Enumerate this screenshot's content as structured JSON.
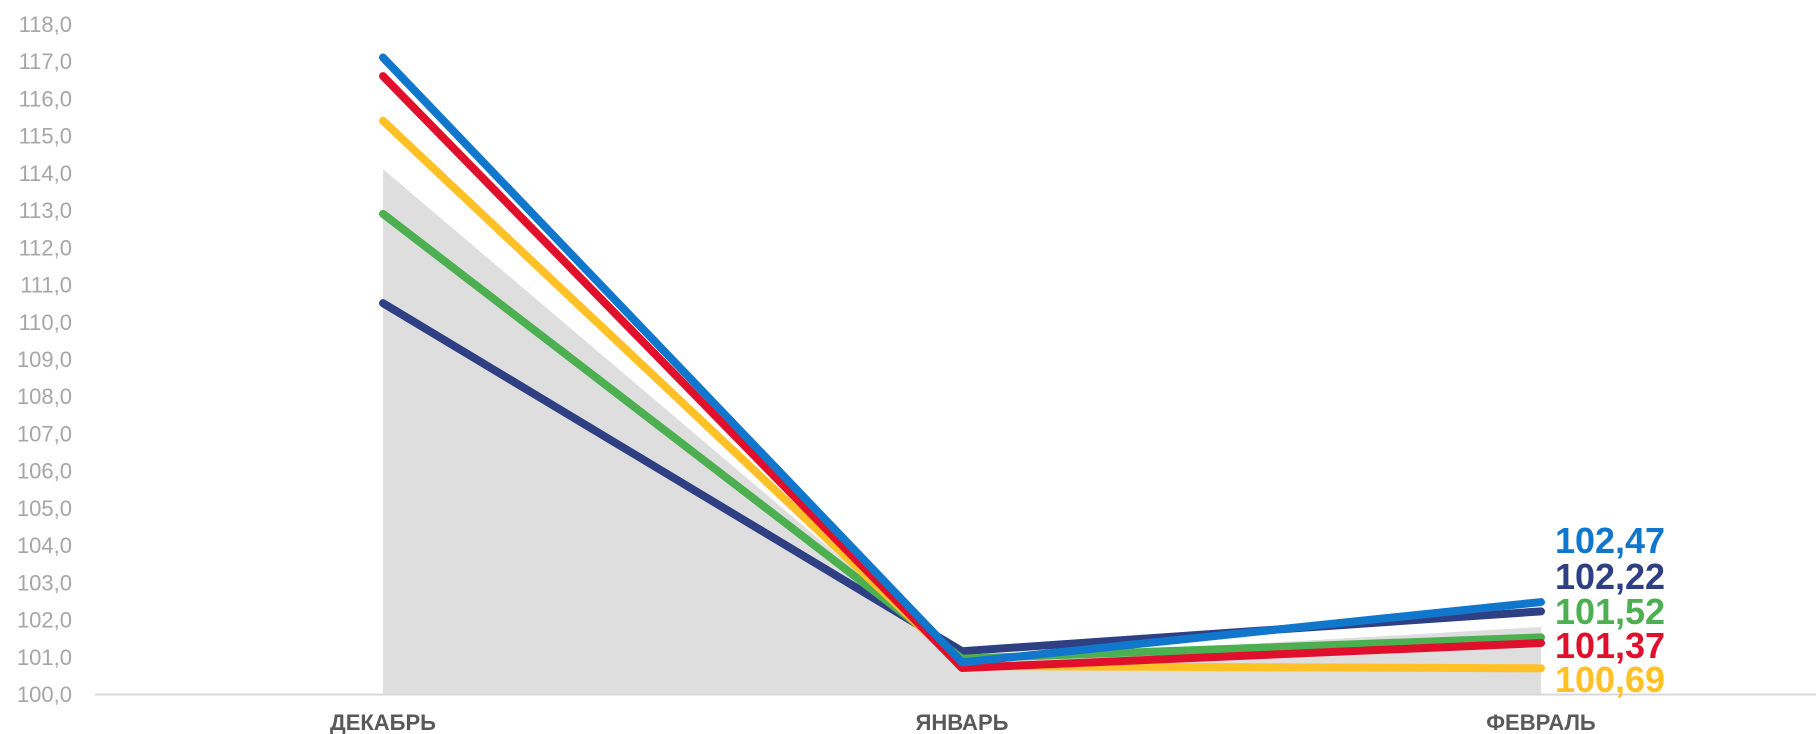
{
  "chart_data": {
    "type": "line",
    "categories": [
      "ДЕКАБРЬ",
      "ЯНВАРЬ",
      "ФЕВРАЛЬ"
    ],
    "ylim": [
      100.0,
      118.0
    ],
    "yticks": [
      "100,0",
      "101,0",
      "102,0",
      "103,0",
      "104,0",
      "105,0",
      "106,0",
      "107,0",
      "108,0",
      "109,0",
      "110,0",
      "111,0",
      "112,0",
      "113,0",
      "114,0",
      "115,0",
      "116,0",
      "117,0",
      "118,0"
    ],
    "grid": false,
    "background_area": {
      "color": "#dedede",
      "values": [
        114.1,
        100.9,
        101.8
      ]
    },
    "series": [
      {
        "color": "#2f3f84",
        "values": [
          110.5,
          101.15,
          102.22
        ],
        "end_label": "102,22"
      },
      {
        "color": "#4caf50",
        "values": [
          112.9,
          100.95,
          101.52
        ],
        "end_label": "101,52"
      },
      {
        "color": "#ffc125",
        "values": [
          115.4,
          100.75,
          100.69
        ],
        "end_label": "100,69"
      },
      {
        "color": "#e0102c",
        "values": [
          116.6,
          100.7,
          101.37
        ],
        "end_label": "101,37"
      },
      {
        "color": "#1177cc",
        "values": [
          117.1,
          100.85,
          102.47
        ],
        "end_label": "102,47"
      }
    ],
    "end_label_order": [
      "102,47",
      "102,22",
      "101,52",
      "101,37",
      "100,69"
    ]
  }
}
